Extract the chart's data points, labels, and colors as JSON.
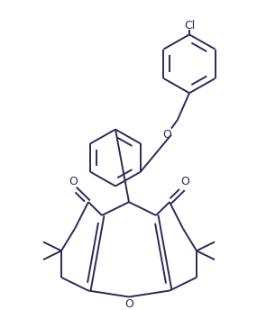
{
  "bg_color": "#ffffff",
  "line_color": "#2a2a5a",
  "line_width": 1.4,
  "figsize": [
    2.85,
    3.44
  ],
  "dpi": 100,
  "cl_label": "Cl",
  "o_label": "O"
}
